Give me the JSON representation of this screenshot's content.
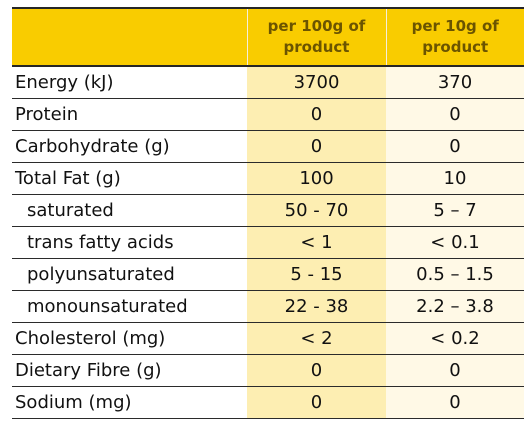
{
  "table": {
    "header": {
      "col1": "",
      "col2": "per 100g of product",
      "col3": "per 10g of product"
    },
    "rows": [
      {
        "label": "Energy (kJ)",
        "per100g": "3700",
        "per10g": "370",
        "indent": false
      },
      {
        "label": "Protein",
        "per100g": "0",
        "per10g": "0",
        "indent": false
      },
      {
        "label": "Carbohydrate (g)",
        "per100g": "0",
        "per10g": "0",
        "indent": false
      },
      {
        "label": "Total Fat (g)",
        "per100g": "100",
        "per10g": "10",
        "indent": false
      },
      {
        "label": "saturated",
        "per100g": "50 - 70",
        "per10g": "5 – 7",
        "indent": true
      },
      {
        "label": "trans fatty acids",
        "per100g": "< 1",
        "per10g": "< 0.1",
        "indent": true
      },
      {
        "label": "polyunsaturated",
        "per100g": "5 - 15",
        "per10g": "0.5 – 1.5",
        "indent": true
      },
      {
        "label": "monounsaturated",
        "per100g": "22 - 38",
        "per10g": "2.2 – 3.8",
        "indent": true
      },
      {
        "label": "Cholesterol (mg)",
        "per100g": "< 2",
        "per10g": "< 0.2",
        "indent": false
      },
      {
        "label": "Dietary Fibre (g)",
        "per100g": "0",
        "per10g": "0",
        "indent": false
      },
      {
        "label": "Sodium (mg)",
        "per100g": "0",
        "per10g": "0",
        "indent": false
      }
    ]
  },
  "colors": {
    "header_background": "#f9cc00",
    "header_text": "#6b5400",
    "per100g_column": "#fdeeb2",
    "per10g_column": "#fff9e6",
    "rule_lines": "#2b2b2b"
  }
}
